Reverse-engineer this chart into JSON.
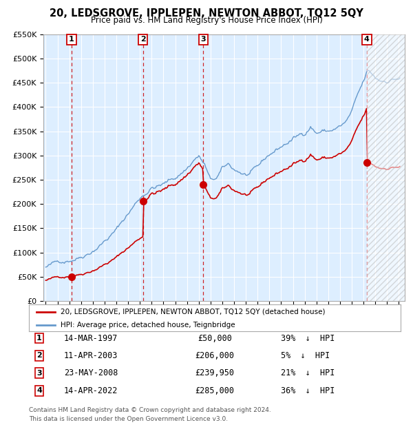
{
  "title": "20, LEDSGROVE, IPPLEPEN, NEWTON ABBOT, TQ12 5QY",
  "subtitle": "Price paid vs. HM Land Registry's House Price Index (HPI)",
  "ylim": [
    0,
    550000
  ],
  "yticks": [
    0,
    50000,
    100000,
    150000,
    200000,
    250000,
    300000,
    350000,
    400000,
    450000,
    500000,
    550000
  ],
  "ytick_labels": [
    "£0",
    "£50K",
    "£100K",
    "£150K",
    "£200K",
    "£250K",
    "£300K",
    "£350K",
    "£400K",
    "£450K",
    "£500K",
    "£550K"
  ],
  "xlim_start": 1994.8,
  "xlim_end": 2025.5,
  "hatch_start": 2022.28,
  "sales": [
    {
      "num": 1,
      "year": 1997.2,
      "price": 50000,
      "date": "14-MAR-1997",
      "pct": "39%"
    },
    {
      "num": 2,
      "year": 2003.27,
      "price": 206000,
      "date": "11-APR-2003",
      "pct": "5%"
    },
    {
      "num": 3,
      "year": 2008.38,
      "price": 239950,
      "date": "23-MAY-2008",
      "pct": "21%"
    },
    {
      "num": 4,
      "year": 2022.28,
      "price": 285000,
      "date": "14-APR-2022",
      "pct": "36%"
    }
  ],
  "legend_label_red": "20, LEDSGROVE, IPPLEPEN, NEWTON ABBOT, TQ12 5QY (detached house)",
  "legend_label_blue": "HPI: Average price, detached house, Teignbridge",
  "footer": "Contains HM Land Registry data © Crown copyright and database right 2024.\nThis data is licensed under the Open Government Licence v3.0.",
  "red_color": "#cc0000",
  "blue_color": "#6699cc",
  "plot_bg": "#ddeeff",
  "grid_color": "#ffffff"
}
